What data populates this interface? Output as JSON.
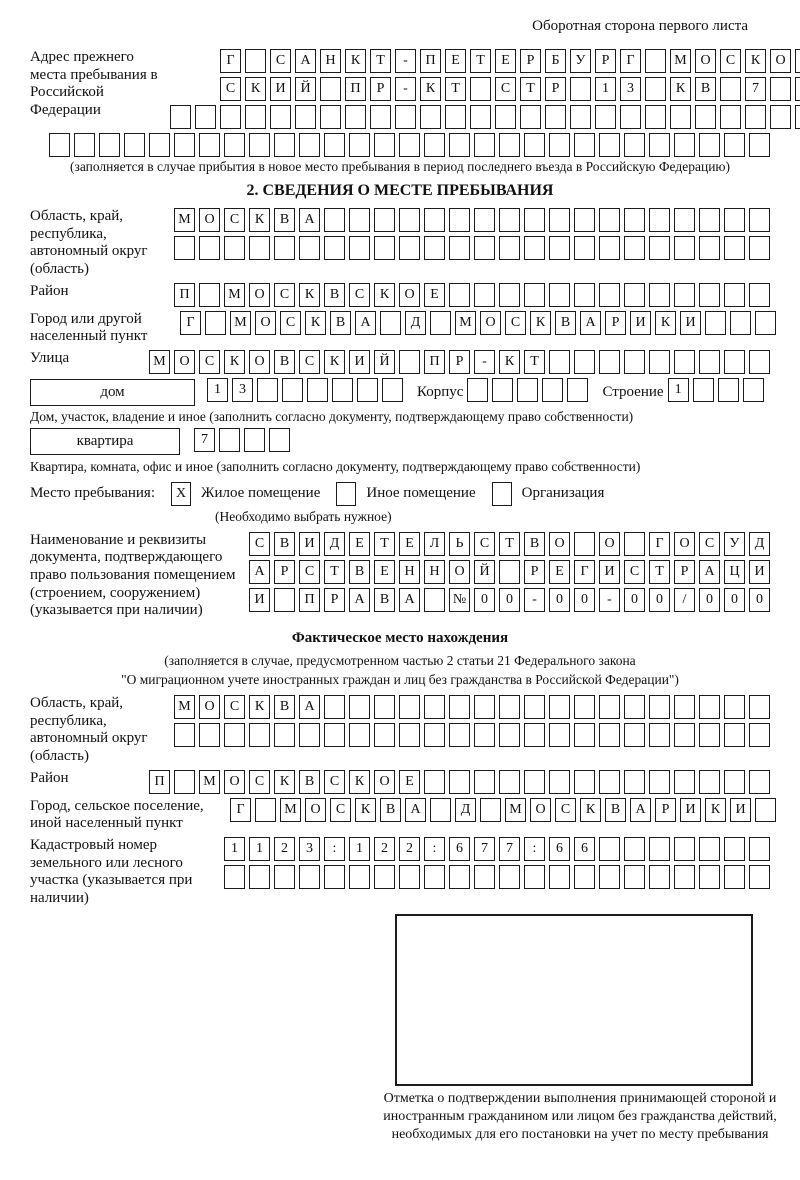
{
  "page": {
    "corner_note": "Оборотная сторона первого листа"
  },
  "prev_address": {
    "label": "Адрес прежнего места пребывания в Российской Федерации",
    "row1": {
      "chars": "Г САНКТ-ПЕТЕРБУРГ МОСКОВ",
      "count": 24
    },
    "row2": {
      "chars": "СКИЙ ПР-КТ СТР 13 КВ 7",
      "count": 24
    },
    "row3": {
      "chars": "",
      "count": 26
    },
    "row4": {
      "chars": "",
      "count": 29
    },
    "note": "(заполняется в случае прибытия в новое место пребывания в период последнего въезда в Российскую Федерацию)"
  },
  "section2": {
    "title": "2. СВЕДЕНИЯ О МЕСТЕ ПРЕБЫВАНИЯ",
    "region": {
      "label": "Область, край, республика, автономный округ (область)",
      "row1": {
        "chars": "МОСКВА",
        "count": 24
      },
      "row2": {
        "chars": "",
        "count": 24
      }
    },
    "district": {
      "label": "Район",
      "row": {
        "chars": "П МОСКВСКОЕ",
        "count": 24
      }
    },
    "city": {
      "label": "Город или другой населенный пункт",
      "row": {
        "chars": "Г МОСКВА Д МОСКВАРИКИ",
        "count": 24
      }
    },
    "street": {
      "label": "Улица",
      "row": {
        "chars": "МОСКОВСКИЙ ПР-КТ",
        "count": 25
      }
    },
    "house": {
      "box_label": "дом",
      "row": {
        "chars": "13",
        "count": 8
      },
      "korpus_label": "Корпус",
      "korpus_row": {
        "chars": "",
        "count": 5
      },
      "stroenie_label": "Строение",
      "stroenie_row": {
        "chars": "1",
        "count": 4
      }
    },
    "house_note": "Дом, участок, владение и иное (заполнить согласно документу, подтверждающему право собственности)",
    "apartment": {
      "box_label": "квартира",
      "row": {
        "chars": "7",
        "count": 4
      }
    },
    "apartment_note": "Квартира, комната, офис и иное (заполнить согласно документу, подтверждающему право собственности)",
    "stay_place": {
      "label": "Место пребывания:",
      "options": [
        {
          "label": "Жилое помещение",
          "mark": "X"
        },
        {
          "label": "Иное помещение",
          "mark": ""
        },
        {
          "label": "Организация",
          "mark": ""
        }
      ],
      "note": "(Необходимо выбрать нужное)"
    },
    "document": {
      "label": "Наименование и реквизиты документа, подтверждающего право пользования помещением (строением, сооружением) (указывается при наличии)",
      "row1": {
        "chars": "СВИДЕТЕЛЬСТВО О ГОСУД",
        "count": 21
      },
      "row2": {
        "chars": "АРСТВЕННОЙ РЕГИСТРАЦИ",
        "count": 21
      },
      "row3": {
        "chars": "И ПРАВА №00-00-00/000",
        "count": 21
      }
    }
  },
  "actual_location": {
    "title": "Фактическое место нахождения",
    "note1": "(заполняется в случае, предусмотренном частью 2 статьи 21 Федерального закона",
    "note2": "\"О миграционном учете иностранных граждан и лиц без гражданства в Российской Федерации\")",
    "region": {
      "label": "Область, край, республика, автономный округ (область)",
      "row1": {
        "chars": "МОСКВА",
        "count": 24
      },
      "row2": {
        "chars": "",
        "count": 24
      }
    },
    "district": {
      "label": "Район",
      "row": {
        "chars": "П МОСКВСКОЕ",
        "count": 25
      }
    },
    "city": {
      "label": "Город, сельское поселение, иной населенный пункт",
      "row": {
        "chars": "Г МОСКВА Д МОСКВАРИКИ",
        "count": 22
      }
    },
    "cadastre": {
      "label": "Кадастровый номер земельного или лесного участка (указывается при наличии)",
      "row1": {
        "chars": "1123:122:677:66",
        "count": 22
      },
      "row2": {
        "chars": "",
        "count": 22
      }
    },
    "mark_box_note": "Отметка о подтверждении выполнения принимающей стороной и иностранным гражданином или лицом без гражданства действий, необходимых для его постановки на учет по месту пребывания"
  }
}
